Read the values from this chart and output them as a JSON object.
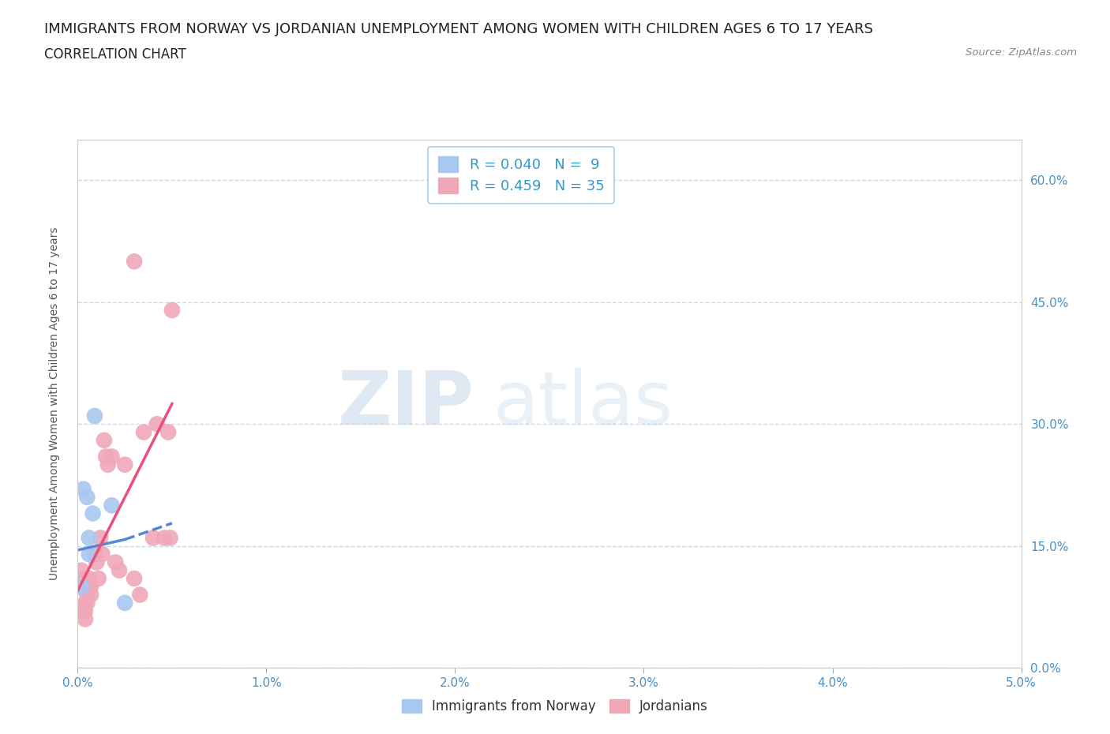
{
  "title": "IMMIGRANTS FROM NORWAY VS JORDANIAN UNEMPLOYMENT AMONG WOMEN WITH CHILDREN AGES 6 TO 17 YEARS",
  "subtitle": "CORRELATION CHART",
  "source": "Source: ZipAtlas.com",
  "xlabel_ticks": [
    "0.0%",
    "1.0%",
    "2.0%",
    "3.0%",
    "4.0%",
    "5.0%"
  ],
  "ylabel_ticks": [
    "0.0%",
    "15.0%",
    "30.0%",
    "45.0%",
    "60.0%"
  ],
  "xlim": [
    0.0,
    0.05
  ],
  "ylim": [
    0.0,
    0.65
  ],
  "norway_R": 0.04,
  "norway_N": 9,
  "jordanian_R": 0.459,
  "jordanian_N": 35,
  "norway_color": "#a8c8f0",
  "jordanian_color": "#f0a8b8",
  "norway_line_color": "#5588cc",
  "jordanian_line_color": "#e8507a",
  "watermark_zip": "ZIP",
  "watermark_atlas": "atlas",
  "norway_x": [
    0.0002,
    0.0003,
    0.0005,
    0.0006,
    0.0006,
    0.0008,
    0.0009,
    0.0018,
    0.0025
  ],
  "norway_y": [
    0.1,
    0.22,
    0.21,
    0.14,
    0.16,
    0.19,
    0.31,
    0.2,
    0.08
  ],
  "jordan_x": [
    0.0001,
    0.0002,
    0.0002,
    0.0003,
    0.0004,
    0.0004,
    0.0004,
    0.0005,
    0.0005,
    0.0006,
    0.0006,
    0.0007,
    0.0007,
    0.0009,
    0.001,
    0.0011,
    0.0012,
    0.0013,
    0.0014,
    0.0015,
    0.0016,
    0.0018,
    0.002,
    0.0022,
    0.0025,
    0.003,
    0.003,
    0.0033,
    0.0035,
    0.004,
    0.0042,
    0.0046,
    0.0048,
    0.0049,
    0.005
  ],
  "jordan_y": [
    0.1,
    0.11,
    0.12,
    0.07,
    0.06,
    0.07,
    0.08,
    0.09,
    0.08,
    0.1,
    0.11,
    0.09,
    0.1,
    0.14,
    0.13,
    0.11,
    0.16,
    0.14,
    0.28,
    0.26,
    0.25,
    0.26,
    0.13,
    0.12,
    0.25,
    0.11,
    0.5,
    0.09,
    0.29,
    0.16,
    0.3,
    0.16,
    0.29,
    0.16,
    0.44
  ],
  "norway_trendline_x": [
    0.0,
    0.0025,
    0.005
  ],
  "norway_trendline_y": [
    0.145,
    0.158,
    0.178
  ],
  "jordan_trendline_x": [
    0.0,
    0.005
  ],
  "jordan_trendline_y": [
    0.095,
    0.325
  ],
  "background_color": "#ffffff",
  "grid_color": "#c8daea",
  "title_fontsize": 13,
  "subtitle_fontsize": 12,
  "tick_label_color": "#4a90c4",
  "axis_label_color": "#555555",
  "legend_R_color": "#3399cc",
  "legend_border_color": "#aaccee"
}
